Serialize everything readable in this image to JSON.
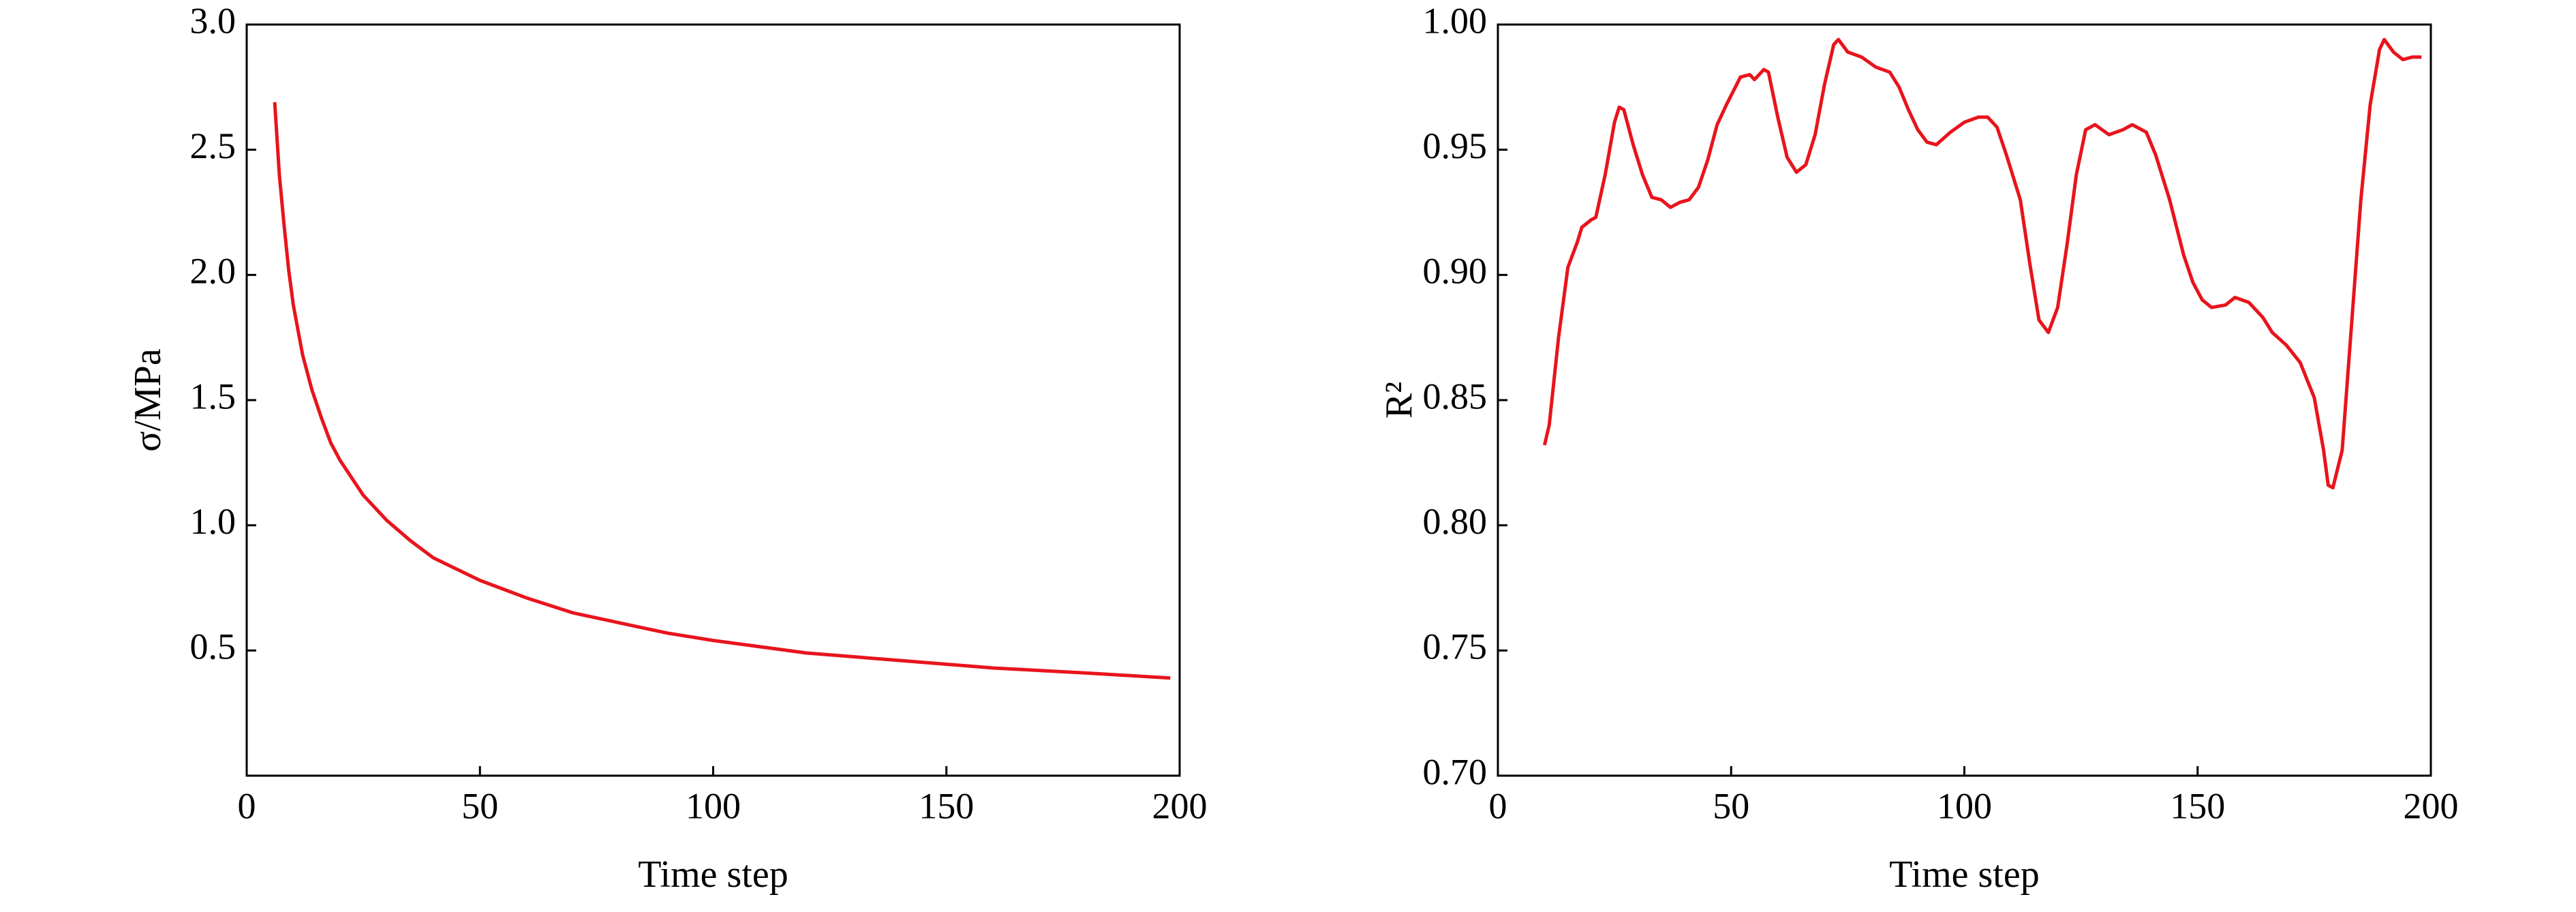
{
  "chart_data": [
    {
      "type": "line",
      "ylabel": "σ/MPa",
      "xlabel": "Time step",
      "x": [
        6,
        7,
        8,
        9,
        10,
        12,
        14,
        16,
        18,
        20,
        25,
        30,
        35,
        40,
        50,
        60,
        70,
        80,
        90,
        100,
        120,
        140,
        160,
        180,
        198
      ],
      "series": [
        {
          "color": "#e8141c",
          "values": [
            2.69,
            2.4,
            2.2,
            2.02,
            1.88,
            1.68,
            1.54,
            1.43,
            1.33,
            1.26,
            1.12,
            1.02,
            0.94,
            0.87,
            0.78,
            0.71,
            0.65,
            0.61,
            0.57,
            0.54,
            0.49,
            0.46,
            0.43,
            0.41,
            0.39
          ]
        }
      ],
      "xlim": [
        0,
        200
      ],
      "xticks": [
        0,
        50,
        100,
        150,
        200
      ],
      "ylim": [
        0,
        3
      ],
      "yticks": [
        0.5,
        {
          "value": 1,
          "label": "1.0"
        },
        1.5,
        {
          "value": 2,
          "label": "2.0"
        },
        2.5,
        {
          "value": 3,
          "label": "3.0"
        }
      ]
    },
    {
      "type": "line",
      "ylabel": "R²",
      "xlabel": "Time step",
      "x": [
        10,
        11,
        13,
        15,
        17,
        18,
        20,
        21,
        23,
        25,
        26,
        27,
        29,
        31,
        33,
        35,
        37,
        39,
        41,
        43,
        45,
        47,
        49,
        52,
        54,
        55,
        57,
        58,
        60,
        62,
        64,
        66,
        68,
        70,
        72,
        73,
        75,
        78,
        81,
        84,
        86,
        88,
        90,
        92,
        94,
        97,
        100,
        103,
        105,
        107,
        109,
        112,
        114,
        116,
        118,
        120,
        122,
        124,
        126,
        128,
        131,
        134,
        136,
        139,
        141,
        144,
        147,
        149,
        151,
        153,
        156,
        158,
        161,
        164,
        166,
        169,
        172,
        175,
        177,
        178,
        179,
        181,
        183,
        185,
        187,
        189,
        190,
        192,
        194,
        196,
        198
      ],
      "series": [
        {
          "color": "#e8141c",
          "values": [
            0.832,
            0.84,
            0.875,
            0.903,
            0.913,
            0.919,
            0.922,
            0.923,
            0.94,
            0.961,
            0.967,
            0.966,
            0.952,
            0.94,
            0.931,
            0.93,
            0.927,
            0.929,
            0.93,
            0.935,
            0.946,
            0.96,
            0.968,
            0.979,
            0.98,
            0.978,
            0.982,
            0.981,
            0.963,
            0.947,
            0.941,
            0.944,
            0.956,
            0.976,
            0.992,
            0.994,
            0.989,
            0.987,
            0.983,
            0.981,
            0.975,
            0.966,
            0.958,
            0.953,
            0.952,
            0.957,
            0.961,
            0.963,
            0.963,
            0.959,
            0.948,
            0.93,
            0.905,
            0.882,
            0.877,
            0.887,
            0.912,
            0.94,
            0.958,
            0.96,
            0.956,
            0.958,
            0.96,
            0.957,
            0.948,
            0.93,
            0.908,
            0.897,
            0.89,
            0.887,
            0.888,
            0.891,
            0.889,
            0.883,
            0.877,
            0.872,
            0.865,
            0.851,
            0.83,
            0.816,
            0.815,
            0.83,
            0.88,
            0.93,
            0.968,
            0.99,
            0.994,
            0.989,
            0.986,
            0.987,
            0.987
          ]
        }
      ],
      "xlim": [
        0,
        200
      ],
      "xticks": [
        0,
        50,
        100,
        150,
        200
      ],
      "ylim": [
        0.7,
        1
      ],
      "yticks": [
        {
          "value": 0.7,
          "label": "0.70"
        },
        {
          "value": 0.75,
          "label": "0.75"
        },
        {
          "value": 0.8,
          "label": "0.80"
        },
        {
          "value": 0.85,
          "label": "0.85"
        },
        {
          "value": 0.9,
          "label": "0.90"
        },
        {
          "value": 0.95,
          "label": "0.95"
        },
        {
          "value": 1,
          "label": "1.00"
        }
      ]
    }
  ]
}
